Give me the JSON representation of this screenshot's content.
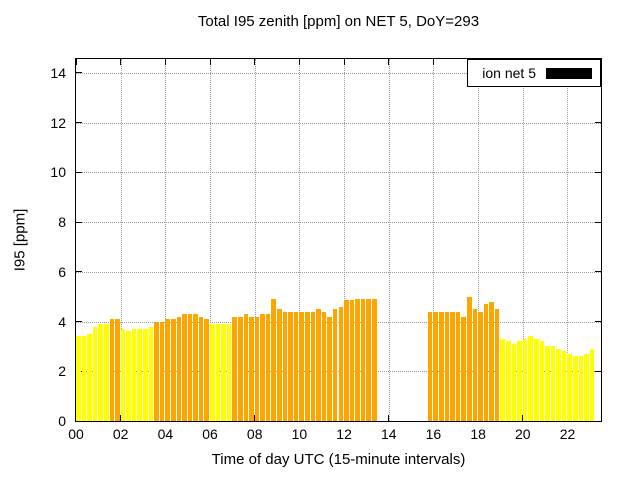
{
  "chart_data": {
    "type": "bar",
    "title": "Total I95 zenith [ppm] on NET 5, DoY=293",
    "xlabel": "Time of day UTC (15-minute intervals)",
    "ylabel": "I95 [ppm]",
    "legend_label": "ion net 5",
    "legend_swatch_color": "#000000",
    "legend_position": "top-right",
    "grid": true,
    "xlim": [
      0,
      23.5
    ],
    "ylim": [
      0,
      14.56
    ],
    "x_ticks": [
      0,
      2,
      4,
      6,
      8,
      10,
      12,
      14,
      16,
      18,
      20,
      22
    ],
    "x_tick_labels": [
      "00",
      "02",
      "04",
      "06",
      "08",
      "10",
      "12",
      "14",
      "16",
      "18",
      "20",
      "22"
    ],
    "y_ticks": [
      0,
      2,
      4,
      6,
      8,
      10,
      12,
      14
    ],
    "interval_hours": 0.25,
    "color_low": "#ffff00",
    "color_high": "#ffa500",
    "color_threshold": 4.0,
    "points": [
      [
        0.0,
        3.4
      ],
      [
        0.25,
        3.4
      ],
      [
        0.5,
        3.5
      ],
      [
        0.75,
        3.8
      ],
      [
        1.0,
        3.9
      ],
      [
        1.25,
        3.9
      ],
      [
        1.5,
        4.1
      ],
      [
        1.75,
        4.1
      ],
      [
        2.0,
        3.7
      ],
      [
        2.25,
        3.6
      ],
      [
        2.5,
        3.7
      ],
      [
        2.75,
        3.7
      ],
      [
        3.0,
        3.7
      ],
      [
        3.25,
        3.8
      ],
      [
        3.5,
        4.0
      ],
      [
        3.75,
        4.0
      ],
      [
        4.0,
        4.1
      ],
      [
        4.25,
        4.1
      ],
      [
        4.5,
        4.2
      ],
      [
        4.75,
        4.3
      ],
      [
        5.0,
        4.3
      ],
      [
        5.25,
        4.3
      ],
      [
        5.5,
        4.2
      ],
      [
        5.75,
        4.1
      ],
      [
        6.0,
        3.9
      ],
      [
        6.25,
        3.9
      ],
      [
        6.5,
        3.9
      ],
      [
        6.75,
        3.9
      ],
      [
        7.0,
        4.2
      ],
      [
        7.25,
        4.2
      ],
      [
        7.5,
        4.3
      ],
      [
        7.75,
        4.2
      ],
      [
        8.0,
        4.2
      ],
      [
        8.25,
        4.3
      ],
      [
        8.5,
        4.3
      ],
      [
        8.75,
        4.9
      ],
      [
        9.0,
        4.5
      ],
      [
        9.25,
        4.4
      ],
      [
        9.5,
        4.4
      ],
      [
        9.75,
        4.4
      ],
      [
        10.0,
        4.4
      ],
      [
        10.25,
        4.4
      ],
      [
        10.5,
        4.4
      ],
      [
        10.75,
        4.5
      ],
      [
        11.0,
        4.4
      ],
      [
        11.25,
        4.2
      ],
      [
        11.5,
        4.5
      ],
      [
        11.75,
        4.6
      ],
      [
        12.0,
        4.85
      ],
      [
        12.25,
        4.85
      ],
      [
        12.5,
        4.9
      ],
      [
        12.75,
        4.9
      ],
      [
        13.0,
        4.9
      ],
      [
        13.25,
        4.9
      ],
      [
        15.75,
        4.4
      ],
      [
        16.0,
        4.4
      ],
      [
        16.25,
        4.4
      ],
      [
        16.5,
        4.4
      ],
      [
        16.75,
        4.4
      ],
      [
        17.0,
        4.4
      ],
      [
        17.25,
        4.2
      ],
      [
        17.5,
        5.0
      ],
      [
        17.75,
        4.5
      ],
      [
        18.0,
        4.4
      ],
      [
        18.25,
        4.7
      ],
      [
        18.5,
        4.8
      ],
      [
        18.75,
        4.5
      ],
      [
        19.0,
        3.3
      ],
      [
        19.25,
        3.2
      ],
      [
        19.5,
        3.1
      ],
      [
        19.75,
        3.2
      ],
      [
        20.0,
        3.3
      ],
      [
        20.25,
        3.4
      ],
      [
        20.5,
        3.3
      ],
      [
        20.75,
        3.2
      ],
      [
        21.0,
        3.0
      ],
      [
        21.25,
        3.0
      ],
      [
        21.5,
        2.9
      ],
      [
        21.75,
        2.8
      ],
      [
        22.0,
        2.7
      ],
      [
        22.25,
        2.6
      ],
      [
        22.5,
        2.6
      ],
      [
        22.75,
        2.7
      ],
      [
        23.0,
        2.9
      ]
    ]
  }
}
